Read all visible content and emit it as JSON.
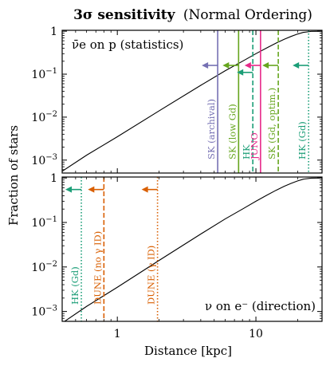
{
  "chart_data": {
    "type": "line",
    "title_bold": "3σ sensitivity",
    "title_rest": "(Normal Ordering)",
    "xlabel": "Distance [kpc]",
    "ylabel": "Fraction of stars",
    "xscale": "log",
    "yscale": "log",
    "xlim": [
      0.4,
      30
    ],
    "x_ticks": [
      {
        "value": 1,
        "label": "1"
      },
      {
        "value": 10,
        "label": "10"
      }
    ],
    "y_ticks": [
      {
        "value": 0.001,
        "base": "10",
        "exp": "−3"
      },
      {
        "value": 0.01,
        "base": "10",
        "exp": "−2"
      },
      {
        "value": 0.1,
        "base": "10",
        "exp": "−1"
      },
      {
        "value": 1,
        "base": "1",
        "exp": ""
      }
    ],
    "panels": [
      {
        "id": "top",
        "annotation": "ν̄e on p (statistics)",
        "ylim": [
          0.0005,
          1.05
        ],
        "curve": {
          "x": [
            0.4,
            0.6,
            1,
            2,
            4,
            6,
            8,
            10,
            12,
            14,
            16,
            18,
            20,
            22,
            25,
            30
          ],
          "y": [
            0.00055,
            0.0013,
            0.0035,
            0.014,
            0.055,
            0.12,
            0.2,
            0.3,
            0.41,
            0.53,
            0.65,
            0.76,
            0.86,
            0.94,
            0.99,
            1.0
          ]
        },
        "markers": [
          {
            "label": "SK (archival)",
            "x": 5.3,
            "color": "#7570b3",
            "style": "solid",
            "arrow_y": 0.16
          },
          {
            "label": "SK (low Gd)",
            "x": 7.5,
            "color": "#66a61e",
            "style": "solid",
            "arrow_y": 0.16
          },
          {
            "label": "HK",
            "x": 9.5,
            "color": "#1b9e77",
            "style": "dashed",
            "arrow_y": 0.11
          },
          {
            "label": "JUNO",
            "x": 10.8,
            "color": "#e7298a",
            "style": "solid",
            "arrow_y": 0.16
          },
          {
            "label": "SK (Gd, optim.)",
            "x": 14.5,
            "color": "#66a61e",
            "style": "dashed",
            "arrow_y": 0.16
          },
          {
            "label": "HK (Gd)",
            "x": 24,
            "color": "#1b9e77",
            "style": "dotted",
            "arrow_y": 0.16
          }
        ]
      },
      {
        "id": "bottom",
        "annotation": "ν on e⁻ (direction)",
        "ylim": [
          0.0006,
          1.05
        ],
        "curve": {
          "x": [
            0.4,
            0.6,
            1,
            2,
            4,
            6,
            8,
            10,
            12,
            14,
            16,
            18,
            20,
            22,
            25,
            30
          ],
          "y": [
            0.00055,
            0.0013,
            0.0035,
            0.014,
            0.055,
            0.12,
            0.2,
            0.3,
            0.41,
            0.53,
            0.65,
            0.76,
            0.86,
            0.94,
            0.99,
            1.0
          ]
        },
        "markers": [
          {
            "label": "HK (Gd)",
            "x": 0.55,
            "color": "#1b9e77",
            "style": "dotted",
            "arrow_y": 0.55
          },
          {
            "label": "DUNE (no γ ID)",
            "x": 0.8,
            "color": "#d95f02",
            "style": "dashed",
            "arrow_y": 0.55
          },
          {
            "label": "DUNE (γ ID)",
            "x": 1.95,
            "color": "#d95f02",
            "style": "dotted",
            "arrow_y": 0.55
          }
        ]
      }
    ]
  }
}
